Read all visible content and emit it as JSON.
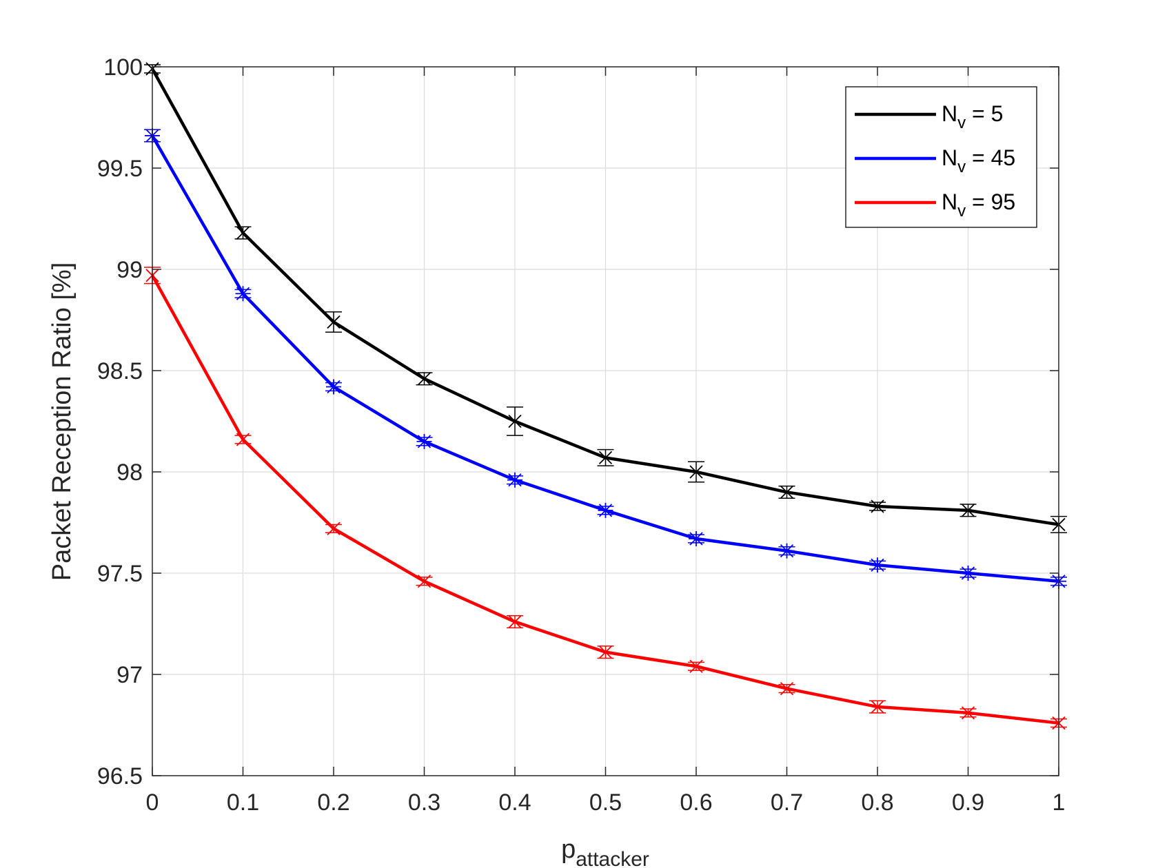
{
  "chart_data": {
    "type": "line",
    "title": "",
    "xlabel": {
      "base": "p",
      "sub": "attacker"
    },
    "ylabel": "Packet Reception Ratio [%]",
    "xlim": [
      0,
      1
    ],
    "ylim": [
      96.5,
      100
    ],
    "xticks": [
      "0",
      "0.1",
      "0.2",
      "0.3",
      "0.4",
      "0.5",
      "0.6",
      "0.7",
      "0.8",
      "0.9",
      "1"
    ],
    "yticks": [
      "96.5",
      "97",
      "97.5",
      "98",
      "98.5",
      "99",
      "99.5",
      "100"
    ],
    "grid": true,
    "legend_position": "top-right",
    "x": [
      0,
      0.1,
      0.2,
      0.3,
      0.4,
      0.5,
      0.6,
      0.7,
      0.8,
      0.9,
      1.0
    ],
    "series": [
      {
        "name": {
          "base": "N",
          "sub": "v",
          "rest": " = 5"
        },
        "color": "#000000",
        "marker": "x",
        "values": [
          99.99,
          99.18,
          98.74,
          98.46,
          98.25,
          98.07,
          98.0,
          97.9,
          97.83,
          97.81,
          97.74
        ],
        "errors": [
          0.02,
          0.03,
          0.05,
          0.03,
          0.07,
          0.04,
          0.05,
          0.03,
          0.02,
          0.03,
          0.04
        ]
      },
      {
        "name": {
          "base": "N",
          "sub": "v",
          "rest": " = 45"
        },
        "color": "#0000ff",
        "marker": "*",
        "values": [
          99.66,
          98.88,
          98.42,
          98.15,
          97.96,
          97.81,
          97.67,
          97.61,
          97.54,
          97.5,
          97.46
        ],
        "errors": [
          0.03,
          0.02,
          0.02,
          0.02,
          0.02,
          0.02,
          0.02,
          0.02,
          0.02,
          0.02,
          0.02
        ]
      },
      {
        "name": {
          "base": "N",
          "sub": "v",
          "rest": " = 95"
        },
        "color": "#ff0000",
        "marker": "x",
        "values": [
          98.97,
          98.16,
          97.72,
          97.46,
          97.26,
          97.11,
          97.04,
          96.93,
          96.84,
          96.81,
          96.76
        ],
        "errors": [
          0.04,
          0.02,
          0.02,
          0.02,
          0.03,
          0.03,
          0.02,
          0.02,
          0.03,
          0.02,
          0.02
        ]
      }
    ]
  }
}
